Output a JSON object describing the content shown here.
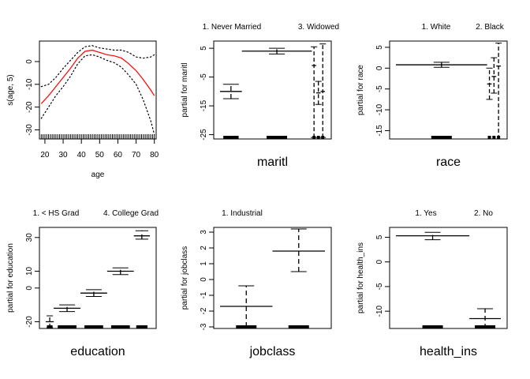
{
  "chart_data": [
    {
      "type": "line",
      "xlabel": "age",
      "ylabel": "s(age, 5)",
      "xlim": [
        17,
        81
      ],
      "ylim": [
        -34,
        9
      ],
      "xticks": [
        "20",
        "30",
        "40",
        "50",
        "60",
        "70",
        "80"
      ],
      "yticks": [
        "0",
        "-10",
        "-20",
        "-30"
      ],
      "series": [
        {
          "role": "fit",
          "color": "#ff0000",
          "x": [
            18,
            22,
            26,
            30,
            34,
            38,
            42,
            46,
            50,
            54,
            58,
            62,
            66,
            70,
            74,
            78,
            80
          ],
          "y": [
            -18.5,
            -15,
            -11,
            -7,
            -3,
            1.5,
            4.5,
            5,
            4,
            3,
            2.5,
            1.5,
            -1,
            -4,
            -8,
            -12.5,
            -15
          ]
        },
        {
          "role": "upper-band",
          "style": "dotted",
          "x": [
            18,
            22,
            26,
            30,
            34,
            38,
            42,
            46,
            50,
            54,
            58,
            62,
            66,
            70,
            74,
            78,
            80
          ],
          "y": [
            -11,
            -10,
            -7,
            -3,
            0.5,
            4,
            6.5,
            7,
            6,
            5.5,
            5,
            5,
            4,
            2,
            1.5,
            2,
            3
          ]
        },
        {
          "role": "lower-band",
          "style": "dotted",
          "x": [
            18,
            22,
            26,
            30,
            34,
            38,
            42,
            46,
            50,
            54,
            58,
            62,
            66,
            70,
            74,
            78,
            80
          ],
          "y": [
            -25,
            -20,
            -15,
            -11,
            -6.5,
            -1,
            2.5,
            3,
            2,
            0.5,
            -0.5,
            -2.5,
            -6,
            -10,
            -17,
            -26,
            -32
          ]
        }
      ],
      "rug": "age"
    },
    {
      "type": "termplot",
      "xlabel": "maritl",
      "ylabel": "partial for maritl",
      "top_labels": [
        "1. Never Married",
        "3. Widowed"
      ],
      "ylim": [
        -26.5,
        7.5
      ],
      "yticks": [
        "5",
        "-5",
        "-15",
        "-25"
      ],
      "levels": [
        {
          "value": -10,
          "lo": -12.5,
          "hi": -7.5,
          "width": 0.5
        },
        {
          "value": 4,
          "lo": 3,
          "hi": 5,
          "width": 1.6
        },
        {
          "value": -1,
          "lo": -26,
          "hi": 5.5,
          "width": 0.1
        },
        {
          "value": -10.5,
          "lo": -14.5,
          "hi": -6.5,
          "width": 0.1
        },
        {
          "value": -10,
          "lo": -26,
          "hi": 6.5,
          "width": 0.1
        }
      ]
    },
    {
      "type": "termplot",
      "xlabel": "race",
      "ylabel": "partial for race",
      "top_labels": [
        "1. White",
        "2. Black"
      ],
      "ylim": [
        -17,
        6.5
      ],
      "yticks": [
        "5",
        "0",
        "-5",
        "-10",
        "-15"
      ],
      "levels": [
        {
          "value": 0.8,
          "lo": 0.2,
          "hi": 1.4,
          "width": 2.0
        },
        {
          "value": -3.8,
          "lo": -7.5,
          "hi": 0,
          "width": 0.1
        },
        {
          "value": -2,
          "lo": -6,
          "hi": 2.5,
          "width": 0.1
        },
        {
          "value": 0.5,
          "lo": -17,
          "hi": 6,
          "width": 0.1
        }
      ]
    },
    {
      "type": "termplot",
      "xlabel": "education",
      "ylabel": "partial for education",
      "top_labels": [
        "1. < HS Grad",
        "4. College Grad"
      ],
      "ylim": [
        -24,
        36
      ],
      "yticks": [
        "30",
        "10",
        "0",
        "-20"
      ],
      "levels": [
        {
          "value": -20,
          "lo": -23.5,
          "hi": -16.5,
          "width": 0.15
        },
        {
          "value": -12,
          "lo": -14,
          "hi": -10,
          "width": 0.5
        },
        {
          "value": -3,
          "lo": -5,
          "hi": -1,
          "width": 0.5
        },
        {
          "value": 10,
          "lo": 8,
          "hi": 12,
          "width": 0.5
        },
        {
          "value": 31,
          "lo": 29,
          "hi": 34,
          "width": 0.3
        }
      ]
    },
    {
      "type": "termplot",
      "xlabel": "jobclass",
      "ylabel": "partial for jobclass",
      "top_labels": [
        "1. Industrial"
      ],
      "ylim": [
        -3.1,
        3.3
      ],
      "yticks": [
        "3",
        "2",
        "1",
        "0",
        "-1",
        "-2",
        "-3"
      ],
      "levels": [
        {
          "value": -1.7,
          "lo": -3,
          "hi": -0.4,
          "width": 1.2
        },
        {
          "value": 1.8,
          "lo": 0.5,
          "hi": 3.2,
          "width": 1.2
        }
      ]
    },
    {
      "type": "termplot",
      "xlabel": "health_ins",
      "ylabel": "partial for health_ins",
      "top_labels": [
        "1. Yes",
        "2. No"
      ],
      "ylim": [
        -13.5,
        7
      ],
      "yticks": [
        "5",
        "0",
        "-5",
        "-10"
      ],
      "levels": [
        {
          "value": 5.3,
          "lo": 4.5,
          "hi": 6,
          "width": 1.4
        },
        {
          "value": -11.5,
          "lo": -13.5,
          "hi": -9.5,
          "width": 0.6
        }
      ]
    }
  ]
}
